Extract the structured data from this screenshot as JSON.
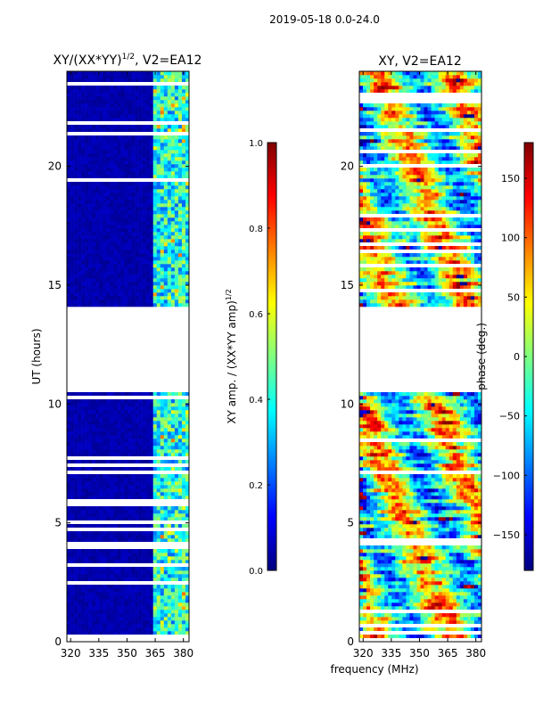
{
  "header": {
    "supertitle": "2019-05-18 0.0-24.0"
  },
  "colors": {
    "jet": [
      "#00007f",
      "#0000ff",
      "#007fff",
      "#00ffff",
      "#7fff7f",
      "#ffff00",
      "#ff7f00",
      "#ff0000",
      "#7f0000"
    ],
    "frame": "#000000",
    "background": "#ffffff",
    "gap": "#ffffff"
  },
  "chart_data": [
    {
      "type": "heatmap",
      "title": "XY/(XX*YY)",
      "title_superscript": "1/2",
      "title_suffix": ", V2=EA12",
      "xlabel": "",
      "ylabel": "UT (hours)",
      "xlim": [
        318,
        383
      ],
      "ylim": [
        0,
        24
      ],
      "xticks": [
        320,
        335,
        350,
        365,
        380
      ],
      "yticks": [
        0,
        5,
        10,
        15,
        20
      ],
      "data_gap_hours": [
        10.5,
        14.1
      ],
      "description_band": "low amplitude (~0.05) below ~363 MHz, 0.2–0.6 above 363 MHz",
      "colorbar": {
        "label": "XY amp. / (XX*YY amp)",
        "label_superscript": "1/2",
        "range": [
          0.0,
          1.0
        ],
        "ticks": [
          "0.0",
          "0.2",
          "0.4",
          "0.6",
          "0.8",
          "1.0"
        ]
      }
    },
    {
      "type": "heatmap",
      "title": "XY, V2=EA12",
      "xlabel": "frequency (MHz)",
      "ylabel": "",
      "xlim": [
        318,
        383
      ],
      "ylim": [
        0,
        24
      ],
      "xticks": [
        320,
        335,
        350,
        365,
        380
      ],
      "yticks": [
        0,
        5,
        10,
        15,
        20
      ],
      "data_gap_hours": [
        10.5,
        14.1
      ],
      "colorbar": {
        "label": "phase (deg.)",
        "range": [
          -180,
          180
        ],
        "ticks": [
          "150",
          "100",
          "50",
          "0",
          "−50",
          "−100",
          "−150"
        ]
      }
    }
  ]
}
